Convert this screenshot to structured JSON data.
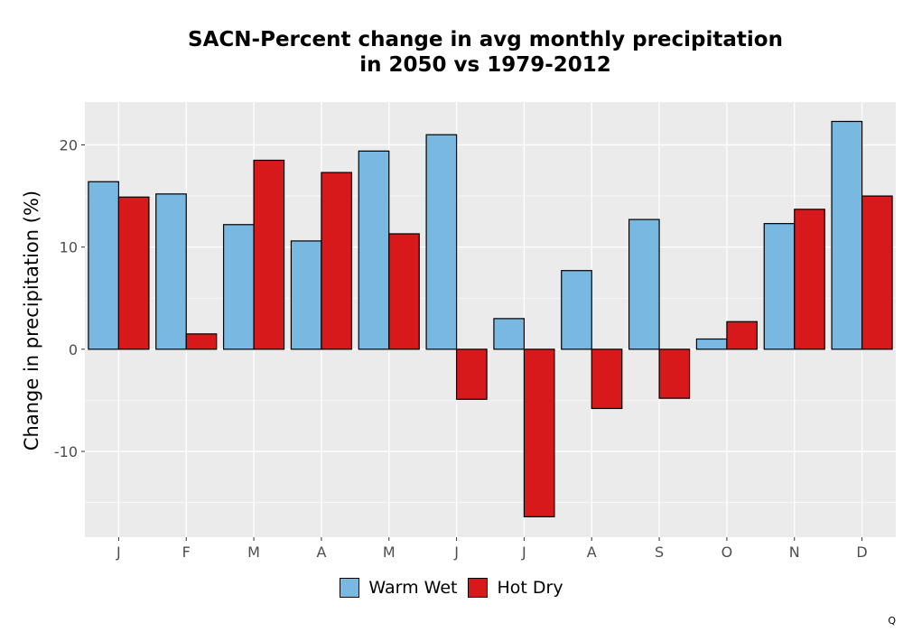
{
  "chart_data": {
    "type": "bar",
    "title_lines": [
      "SACN-Percent change in avg monthly precipitation",
      "in 2050 vs 1979-2012"
    ],
    "xlabel": "",
    "ylabel": "Change in precipitation (%)",
    "categories": [
      "J",
      "F",
      "M",
      "A",
      "M",
      "J",
      "J",
      "A",
      "S",
      "O",
      "N",
      "D"
    ],
    "series": [
      {
        "name": "Warm Wet",
        "color": "#79b8e1",
        "values": [
          16.4,
          15.2,
          12.2,
          10.6,
          19.4,
          21.0,
          3.0,
          7.7,
          12.7,
          1.0,
          12.3,
          22.3
        ]
      },
      {
        "name": "Hot Dry",
        "color": "#d7191c",
        "values": [
          14.9,
          1.5,
          18.5,
          17.3,
          11.3,
          -4.9,
          -16.4,
          -5.8,
          -4.8,
          2.7,
          13.7,
          15.0
        ]
      }
    ],
    "ylim": [
      -18.4,
      24.2
    ],
    "yticks": [
      -10,
      0,
      10,
      20
    ],
    "ytick_labels": [
      "-10",
      "0",
      "10",
      "20"
    ],
    "grid": true,
    "legend_position": "bottom"
  },
  "corner_mark": "Q"
}
